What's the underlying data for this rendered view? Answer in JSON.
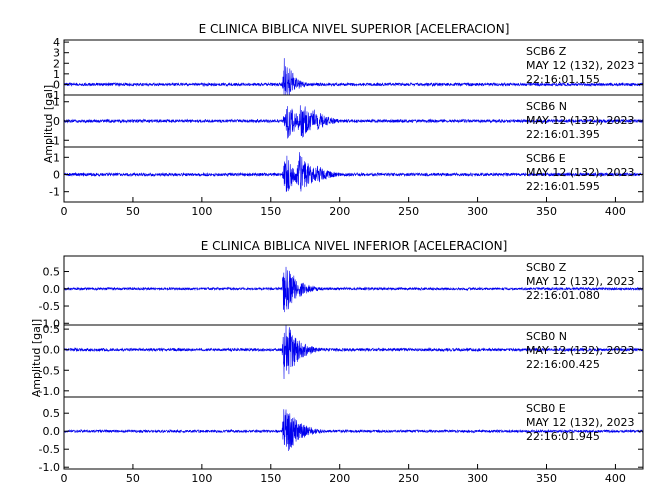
{
  "chart_data": [
    {
      "type": "line",
      "title": "E CLINICA BIBLICA NIVEL SUPERIOR [ACELERACION]",
      "ylabel": "Amplitud [gal]",
      "xlim": [
        0,
        420
      ],
      "x_ticks": [
        "0",
        "50",
        "100",
        "150",
        "200",
        "250",
        "300",
        "350",
        "400"
      ],
      "trace_color": "#0000ee",
      "panels": [
        {
          "station": "SCB6",
          "component": "Z",
          "date": "MAY 12 (132), 2023",
          "time": "22:16:01.155",
          "ylim": [
            -1.0,
            4.2
          ],
          "y_ticks": [
            -1,
            0,
            1,
            2,
            3,
            4
          ],
          "y_tick_labels": [
            "-1",
            "0",
            "1",
            "2",
            "3",
            "4"
          ],
          "noise": 0.14,
          "onset": 158,
          "bursts": [
            {
              "start": 158,
              "peak": 3.6,
              "rise": 2.5,
              "decay": 5,
              "neg": 0.55
            }
          ]
        },
        {
          "station": "SCB6",
          "component": "N",
          "date": "MAY 12 (132), 2023",
          "time": "22:16:01.395",
          "ylim": [
            -1.35,
            1.35
          ],
          "y_ticks": [
            -1,
            0,
            1
          ],
          "y_tick_labels": [
            "-1",
            "0",
            "1"
          ],
          "noise": 0.08,
          "onset": 158,
          "bursts": [
            {
              "start": 158,
              "peak": 0.95,
              "rise": 4,
              "decay": 9,
              "neg": 1
            },
            {
              "start": 168,
              "peak": 1.15,
              "rise": 4,
              "decay": 8,
              "neg": 1
            },
            {
              "start": 178,
              "peak": 0.75,
              "rise": 3,
              "decay": 9,
              "neg": 1
            }
          ]
        },
        {
          "station": "SCB6",
          "component": "E",
          "date": "MAY 12 (132), 2023",
          "time": "22:16:01.595",
          "ylim": [
            -1.6,
            1.6
          ],
          "y_ticks": [
            -1,
            0,
            1
          ],
          "y_tick_labels": [
            "-1",
            "0",
            "1"
          ],
          "noise": 0.09,
          "onset": 158,
          "bursts": [
            {
              "start": 158,
              "peak": 1.2,
              "rise": 3,
              "decay": 8,
              "neg": 1
            },
            {
              "start": 167,
              "peak": 1.4,
              "rise": 4,
              "decay": 9,
              "neg": 1
            },
            {
              "start": 180,
              "peak": 0.6,
              "rise": 3,
              "decay": 10,
              "neg": 1
            }
          ]
        }
      ]
    },
    {
      "type": "line",
      "title": "E CLINICA BIBLICA NIVEL INFERIOR [ACELERACION]",
      "ylabel": "Amplitud [gal]",
      "xlim": [
        0,
        420
      ],
      "x_ticks": [
        "0",
        "50",
        "100",
        "150",
        "200",
        "250",
        "300",
        "350",
        "400"
      ],
      "trace_color": "#0000ee",
      "panels": [
        {
          "station": "SCB0",
          "component": "Z",
          "date": "MAY 12 (132), 2023",
          "time": "22:16:01.080",
          "ylim": [
            -1.05,
            0.95
          ],
          "y_ticks": [
            -1.0,
            -0.5,
            0.0,
            0.5
          ],
          "y_tick_labels": [
            "-1.0",
            "-0.5",
            "0.0",
            "0.5"
          ],
          "noise": 0.035,
          "onset": 158,
          "bursts": [
            {
              "start": 158,
              "peak": 0.9,
              "rise": 1.5,
              "decay": 9,
              "neg": 1
            }
          ]
        },
        {
          "station": "SCB0",
          "component": "N",
          "date": "MAY 12 (132), 2023",
          "time": "22:16:00.425",
          "ylim": [
            -1.15,
            0.6
          ],
          "y_ticks": [
            -1.0,
            -0.5,
            0.0,
            0.5
          ],
          "y_tick_labels": [
            "-1.0",
            "-0.5",
            "0.0",
            "0.5"
          ],
          "noise": 0.035,
          "onset": 158,
          "bursts": [
            {
              "start": 158,
              "peak": 0.85,
              "rise": 1.5,
              "decay": 9,
              "neg": 1.1
            }
          ]
        },
        {
          "station": "SCB0",
          "component": "E",
          "date": "MAY 12 (132), 2023",
          "time": "22:16:01.945",
          "ylim": [
            -1.05,
            0.95
          ],
          "y_ticks": [
            -1.0,
            -0.5,
            0.0,
            0.5
          ],
          "y_tick_labels": [
            "-1.0",
            "-0.5",
            "0.0",
            "0.5"
          ],
          "noise": 0.035,
          "onset": 158,
          "bursts": [
            {
              "start": 158,
              "peak": 0.8,
              "rise": 1.5,
              "decay": 10,
              "neg": 1
            }
          ]
        }
      ]
    }
  ]
}
